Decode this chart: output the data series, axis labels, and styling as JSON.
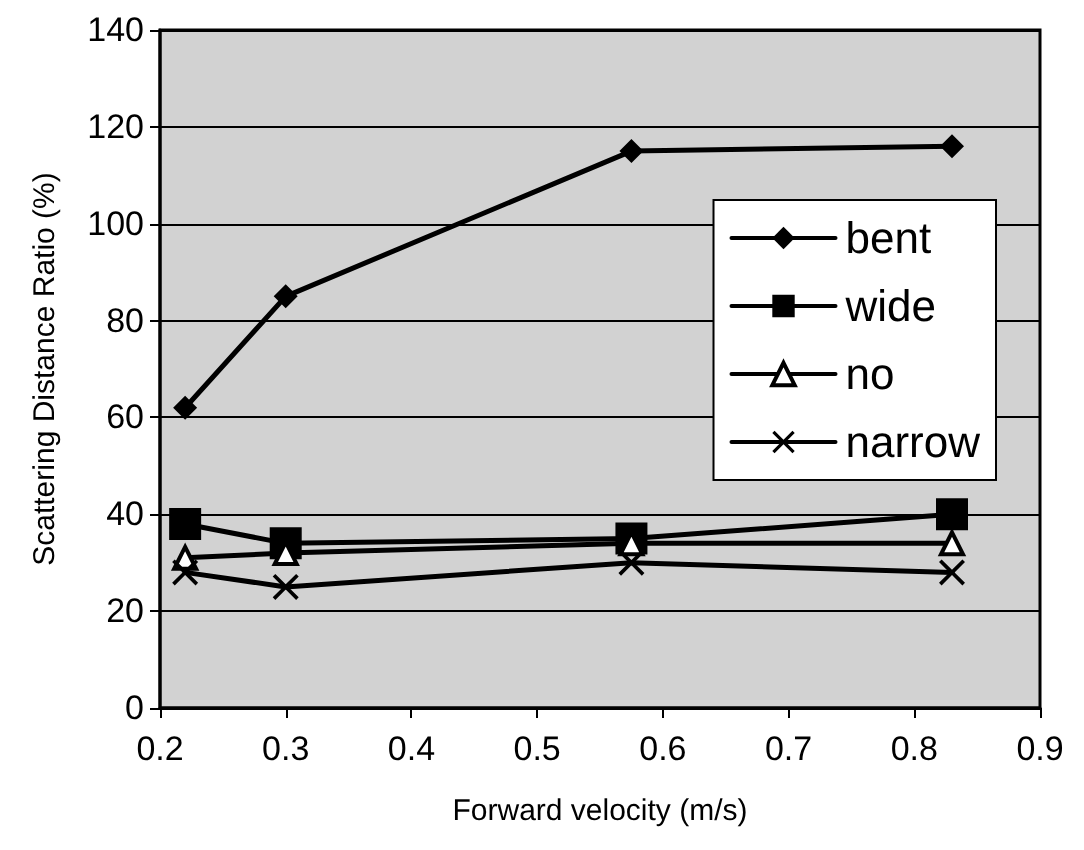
{
  "chart_data": {
    "type": "line",
    "xlabel": "Forward velocity (m/s)",
    "ylabel": "Scattering Distance Ratio (%)",
    "x": [
      0.22,
      0.3,
      0.575,
      0.83
    ],
    "series": [
      {
        "name": "bent",
        "color": "#000000",
        "marker": "diamond",
        "values": [
          62,
          85,
          115,
          116
        ]
      },
      {
        "name": "wide",
        "color": "#000000",
        "marker": "square",
        "values": [
          38,
          34,
          35,
          40
        ]
      },
      {
        "name": "no",
        "color": "#000000",
        "marker": "triangle",
        "values": [
          31,
          32,
          34,
          34
        ]
      },
      {
        "name": "narrow",
        "color": "#000000",
        "marker": "cross",
        "values": [
          28,
          25,
          30,
          28
        ]
      }
    ],
    "xlim": [
      0.2,
      0.9
    ],
    "xticks": [
      0.2,
      0.3,
      0.4,
      0.5,
      0.6,
      0.7,
      0.8,
      0.9
    ],
    "ylim": [
      0,
      140
    ],
    "yticks": [
      0,
      20,
      40,
      60,
      80,
      100,
      120,
      140
    ],
    "grid": "y",
    "legend": "right",
    "line_style": "solid"
  }
}
